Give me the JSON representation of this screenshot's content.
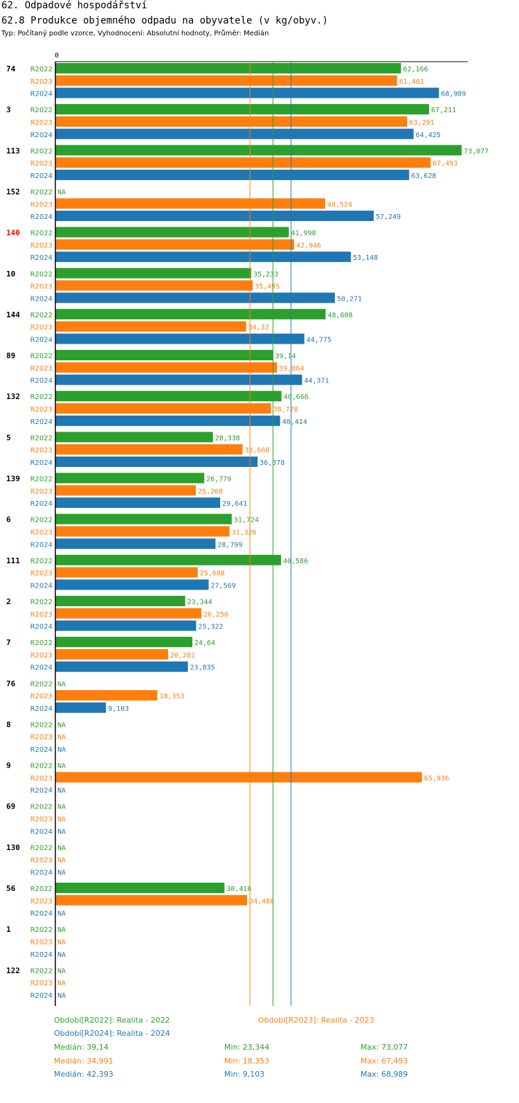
{
  "header": {
    "title": "62. Odpadové hospodářství",
    "subtitle": "62.8 Produkce objemného odpadu na obyvatele (v kg/obyv.)",
    "type_line": "Typ: Počítaný podle vzorce, Vyhodnocení: Absolutní hodnoty, Průměr: Medián"
  },
  "chart_data": {
    "type": "bar",
    "orientation": "horizontal",
    "axis_zero_label": "0",
    "na_label": "NA",
    "xlim": [
      0,
      77
    ],
    "series": [
      {
        "name": "R2022",
        "color": "#2ca02c"
      },
      {
        "name": "R2023",
        "color": "#ff7f0e"
      },
      {
        "name": "R2024",
        "color": "#1f77b4"
      }
    ],
    "groups": [
      {
        "id": "74",
        "highlight": false,
        "values": [
          62.166,
          61.461,
          68.989
        ],
        "labels": [
          "62,166",
          "61,461",
          "68,989"
        ]
      },
      {
        "id": "3",
        "highlight": false,
        "values": [
          67.211,
          63.291,
          64.425
        ],
        "labels": [
          "67,211",
          "63,291",
          "64,425"
        ]
      },
      {
        "id": "113",
        "highlight": false,
        "values": [
          73.077,
          67.493,
          63.628
        ],
        "labels": [
          "73,077",
          "67,493",
          "63,628"
        ]
      },
      {
        "id": "152",
        "highlight": false,
        "values": [
          null,
          48.524,
          57.249
        ],
        "labels": [
          "NA",
          "48,524",
          "57,249"
        ]
      },
      {
        "id": "140",
        "highlight": true,
        "values": [
          41.998,
          42.946,
          53.148
        ],
        "labels": [
          "41,998",
          "42,946",
          "53,148"
        ]
      },
      {
        "id": "10",
        "highlight": false,
        "values": [
          35.233,
          35.495,
          50.271
        ],
        "labels": [
          "35,233",
          "35,495",
          "50,271"
        ]
      },
      {
        "id": "144",
        "highlight": false,
        "values": [
          48.608,
          34.32,
          44.775
        ],
        "labels": [
          "48,608",
          "34,32",
          "44,775"
        ]
      },
      {
        "id": "89",
        "highlight": false,
        "values": [
          39.14,
          39.864,
          44.371
        ],
        "labels": [
          "39,14",
          "39,864",
          "44,371"
        ]
      },
      {
        "id": "132",
        "highlight": false,
        "values": [
          40.666,
          38.778,
          40.414
        ],
        "labels": [
          "40,666",
          "38,778",
          "40,414"
        ]
      },
      {
        "id": "5",
        "highlight": false,
        "values": [
          28.338,
          33.668,
          36.378
        ],
        "labels": [
          "28,338",
          "33,668",
          "36,378"
        ]
      },
      {
        "id": "139",
        "highlight": false,
        "values": [
          26.779,
          25.268,
          29.641
        ],
        "labels": [
          "26,779",
          "25,268",
          "29,641"
        ]
      },
      {
        "id": "6",
        "highlight": false,
        "values": [
          31.724,
          31.326,
          28.799
        ],
        "labels": [
          "31,724",
          "31,326",
          "28,799"
        ]
      },
      {
        "id": "111",
        "highlight": false,
        "values": [
          40.586,
          25.608,
          27.569
        ],
        "labels": [
          "40,586",
          "25,608",
          "27,569"
        ]
      },
      {
        "id": "2",
        "highlight": false,
        "values": [
          23.344,
          26.256,
          25.322
        ],
        "labels": [
          "23,344",
          "26,256",
          "25,322"
        ]
      },
      {
        "id": "7",
        "highlight": false,
        "values": [
          24.64,
          20.281,
          23.835
        ],
        "labels": [
          "24,64",
          "20,281",
          "23,835"
        ]
      },
      {
        "id": "76",
        "highlight": false,
        "values": [
          null,
          18.353,
          9.103
        ],
        "labels": [
          "NA",
          "18,353",
          "9,103"
        ]
      },
      {
        "id": "8",
        "highlight": false,
        "values": [
          null,
          null,
          null
        ],
        "labels": [
          "NA",
          "NA",
          "NA"
        ]
      },
      {
        "id": "9",
        "highlight": false,
        "values": [
          null,
          65.936,
          null
        ],
        "labels": [
          "NA",
          "65,936",
          "NA"
        ]
      },
      {
        "id": "69",
        "highlight": false,
        "values": [
          null,
          null,
          null
        ],
        "labels": [
          "NA",
          "NA",
          "NA"
        ]
      },
      {
        "id": "130",
        "highlight": false,
        "values": [
          null,
          null,
          null
        ],
        "labels": [
          "NA",
          "NA",
          "NA"
        ]
      },
      {
        "id": "56",
        "highlight": false,
        "values": [
          30.416,
          34.486,
          null
        ],
        "labels": [
          "30,416",
          "34,486",
          "NA"
        ]
      },
      {
        "id": "1",
        "highlight": false,
        "values": [
          null,
          null,
          null
        ],
        "labels": [
          "NA",
          "NA",
          "NA"
        ]
      },
      {
        "id": "122",
        "highlight": false,
        "values": [
          null,
          null,
          null
        ],
        "labels": [
          "NA",
          "NA",
          "NA"
        ]
      }
    ],
    "median_lines": [
      {
        "series": "R2022",
        "value": 39.14
      },
      {
        "series": "R2023",
        "value": 34.991
      },
      {
        "series": "R2024",
        "value": 42.393
      }
    ]
  },
  "legend": {
    "r2022": "Období[R2022]: Realita - 2022",
    "r2023": "Období[R2023]: Realita - 2023",
    "r2024": "Období[R2024]: Realita - 2024"
  },
  "stats": [
    {
      "series": "R2022",
      "color": "#2ca02c",
      "median": "Medián: 39,14",
      "min": "Min: 23,344",
      "max": "Max: 73,077"
    },
    {
      "series": "R2023",
      "color": "#ff7f0e",
      "median": "Medián: 34,991",
      "min": "Min: 18,353",
      "max": "Max: 67,493"
    },
    {
      "series": "R2024",
      "color": "#1f77b4",
      "median": "Medián: 42,393",
      "min": "Min: 9,103",
      "max": "Max: 68,989"
    }
  ]
}
